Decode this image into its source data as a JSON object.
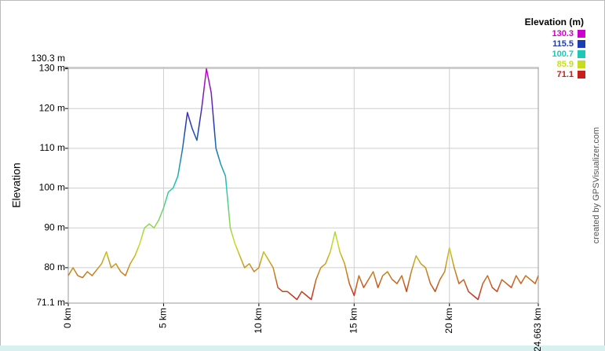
{
  "chart_data": {
    "type": "line",
    "ylabel": "Elevation",
    "credit": "created by GPSVisualizer.com",
    "x": [
      0,
      0.25,
      0.5,
      0.75,
      1,
      1.25,
      1.5,
      1.75,
      2,
      2.25,
      2.5,
      2.75,
      3,
      3.25,
      3.5,
      3.75,
      4,
      4.25,
      4.5,
      4.75,
      5,
      5.25,
      5.5,
      5.75,
      6,
      6.25,
      6.5,
      6.75,
      7,
      7.25,
      7.5,
      7.75,
      8,
      8.25,
      8.5,
      8.75,
      9,
      9.25,
      9.5,
      9.75,
      10,
      10.25,
      10.5,
      10.75,
      11,
      11.25,
      11.5,
      11.75,
      12,
      12.25,
      12.5,
      12.75,
      13,
      13.25,
      13.5,
      13.75,
      14,
      14.25,
      14.5,
      14.75,
      15,
      15.25,
      15.5,
      15.75,
      16,
      16.25,
      16.5,
      16.75,
      17,
      17.25,
      17.5,
      17.75,
      18,
      18.25,
      18.5,
      18.75,
      19,
      19.25,
      19.5,
      19.75,
      20,
      20.25,
      20.5,
      20.75,
      21,
      21.25,
      21.5,
      21.75,
      22,
      22.25,
      22.5,
      22.75,
      23,
      23.25,
      23.5,
      23.75,
      24,
      24.25,
      24.5,
      24.663
    ],
    "values": [
      78,
      80,
      78,
      77.5,
      79,
      78,
      79.5,
      81,
      84,
      80,
      81,
      79,
      78,
      81,
      83,
      86,
      90,
      91,
      90,
      92,
      95,
      99,
      100,
      103,
      110,
      119,
      115,
      112,
      120,
      130,
      124,
      110,
      106,
      103,
      90,
      86,
      83,
      80,
      81,
      79,
      80,
      84,
      82,
      80,
      75,
      74,
      74,
      73,
      72,
      74,
      73,
      72,
      77,
      80,
      81,
      84,
      89,
      84,
      81,
      76,
      73,
      78,
      75,
      77,
      79,
      75,
      78,
      79,
      77,
      76,
      78,
      74,
      79,
      83,
      81,
      80,
      76,
      74,
      77,
      79,
      85,
      80,
      76,
      77,
      74,
      73,
      72,
      76,
      78,
      75,
      74,
      77,
      76,
      75,
      78,
      76,
      78,
      77,
      76,
      78
    ],
    "xlim": [
      0,
      24.663
    ],
    "xticks": [
      {
        "value": 0,
        "label": "0 km"
      },
      {
        "value": 5,
        "label": "5 km"
      },
      {
        "value": 10,
        "label": "10 km"
      },
      {
        "value": 15,
        "label": "15 km"
      },
      {
        "value": 20,
        "label": "20 km"
      },
      {
        "value": 24.663,
        "label": "24.663 km"
      }
    ],
    "ylim": [
      71.1,
      130.3
    ],
    "yticks": [
      {
        "value": 71.1,
        "label": "71.1 m"
      },
      {
        "value": 80,
        "label": "80 m"
      },
      {
        "value": 90,
        "label": "90 m"
      },
      {
        "value": 100,
        "label": "100 m"
      },
      {
        "value": 110,
        "label": "110 m"
      },
      {
        "value": 120,
        "label": "120 m"
      },
      {
        "value": 130,
        "label": "130 m"
      },
      {
        "value": 130.3,
        "label": "130.3 m"
      }
    ],
    "grid": true,
    "legend": {
      "title": "Elevation (m)",
      "position": "top-right",
      "items": [
        {
          "value": 130.3,
          "color": "#cc00cc"
        },
        {
          "value": 115.5,
          "color": "#1a3cb4"
        },
        {
          "value": 100.7,
          "color": "#1ec8b4"
        },
        {
          "value": 85.9,
          "color": "#c8dc1e"
        },
        {
          "value": 71.1,
          "color": "#c81e1e"
        }
      ]
    }
  }
}
